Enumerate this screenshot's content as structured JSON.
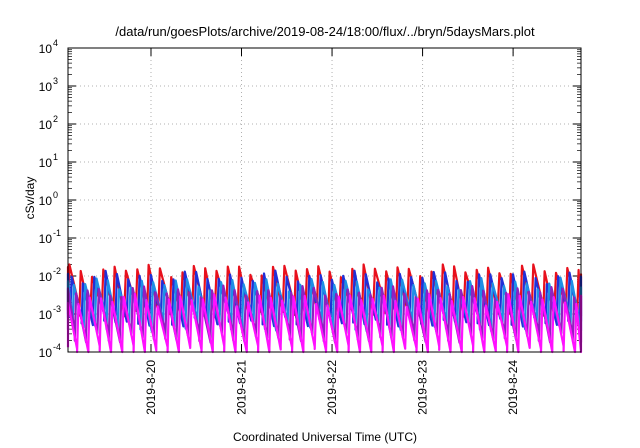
{
  "chart_data": {
    "type": "line",
    "title": "/data/run/goesPlots/archive/2019-08-24/18:00/flux/../bryn/5daysMars.plot",
    "xlabel": "Coordinated Universal Time (UTC)",
    "ylabel": "cSv/day",
    "yscale": "log",
    "ylim": [
      0.0001,
      10000
    ],
    "xlim": [
      "2019-08-19T02:00",
      "2019-08-24T18:00"
    ],
    "grid": true,
    "x_ticks": [
      "2019-8-20",
      "2019-8-21",
      "2019-8-22",
      "2019-8-23",
      "2019-8-24"
    ],
    "y_ticks": [
      {
        "base": "10",
        "exp": "-4"
      },
      {
        "base": "10",
        "exp": "-3"
      },
      {
        "base": "10",
        "exp": "-2"
      },
      {
        "base": "10",
        "exp": "-1"
      },
      {
        "base": "10",
        "exp": "0"
      },
      {
        "base": "10",
        "exp": "1"
      },
      {
        "base": "10",
        "exp": "2"
      },
      {
        "base": "10",
        "exp": "3"
      },
      {
        "base": "10",
        "exp": "4"
      }
    ],
    "sawtooth_period_hours": 3,
    "series": [
      {
        "color": "#e8101c",
        "peak": 0.015,
        "trough": 0.0014,
        "phase_hours": 0.0
      },
      {
        "color": "#2030d8",
        "peak": 0.01,
        "trough": 0.0008,
        "phase_hours": 0.6
      },
      {
        "color": "#1e8fe6",
        "peak": 0.0065,
        "trough": 0.0006,
        "phase_hours": 1.2
      },
      {
        "color": "#9020c0",
        "peak": 0.004,
        "trough": 0.0003,
        "phase_hours": 1.8
      },
      {
        "color": "#ff10ff",
        "peak": 0.0025,
        "trough": 0.00012,
        "phase_hours": 2.4
      }
    ]
  }
}
